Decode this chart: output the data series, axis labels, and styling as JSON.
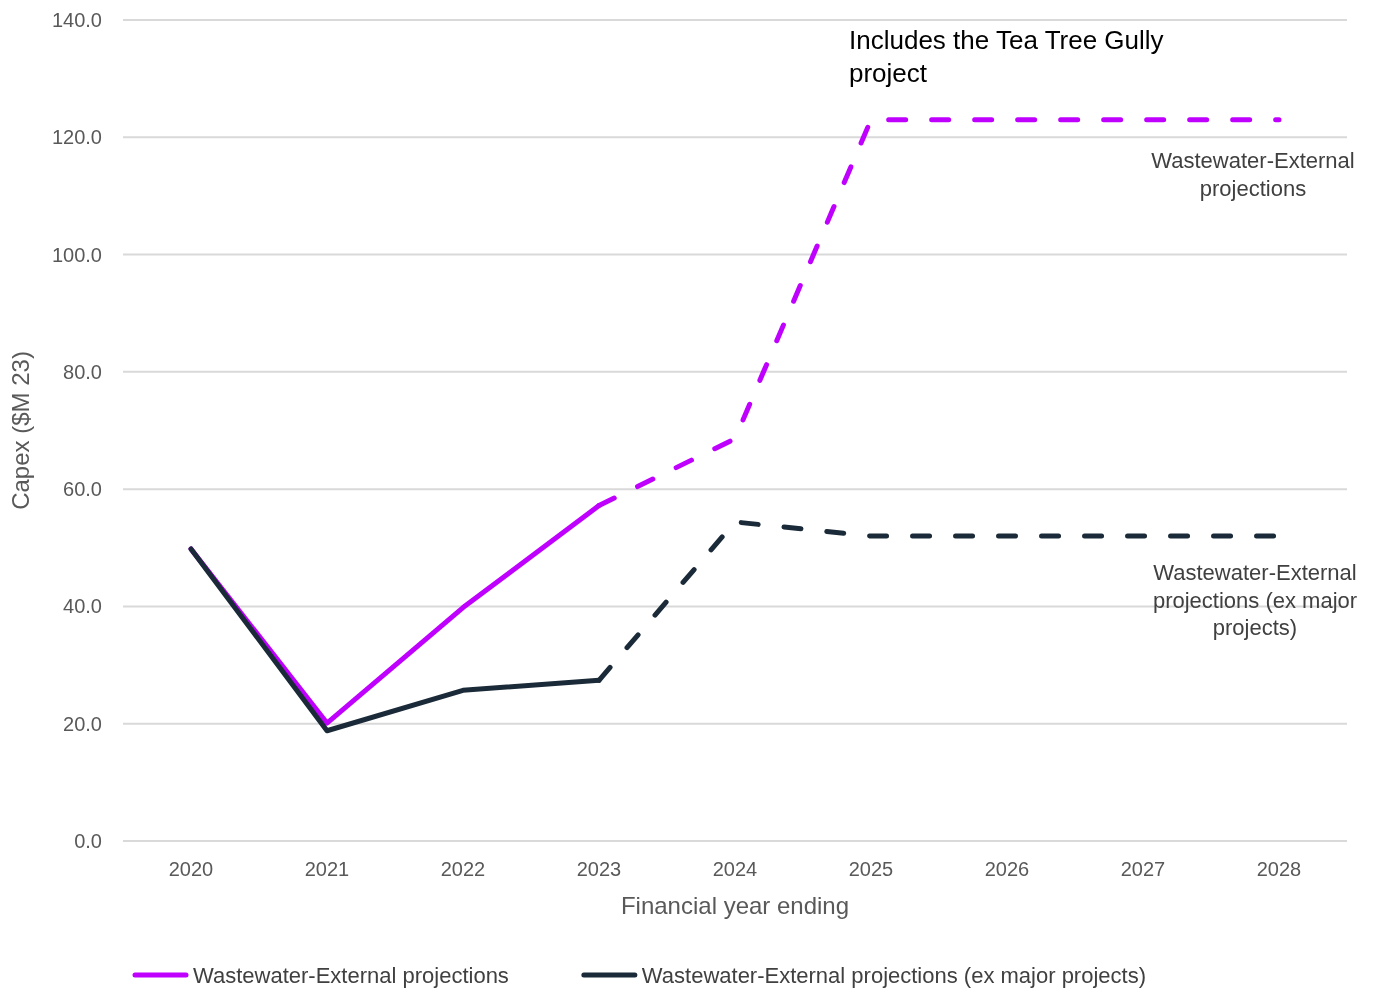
{
  "chart_data": {
    "type": "line",
    "xlabel": "Financial year ending",
    "ylabel": "Capex ($M 23)",
    "categories": [
      "2020",
      "2021",
      "2022",
      "2023",
      "2024",
      "2025",
      "2026",
      "2027",
      "2028"
    ],
    "series": [
      {
        "name": "Wastewater-External projections",
        "color": "#bf00ff",
        "line_style": "solid",
        "values": [
          49.8,
          20.1,
          39.8,
          57.2,
          null,
          null,
          null,
          null,
          null
        ]
      },
      {
        "name": "Wastewater-External projections (ex major projects)",
        "color": "#1b2a38",
        "line_style": "solid",
        "values": [
          49.8,
          18.8,
          25.7,
          27.4,
          null,
          null,
          null,
          null,
          null
        ]
      },
      {
        "color": "#bf00ff",
        "line_style": "dashed",
        "values": [
          null,
          null,
          null,
          57.2,
          68.6,
          123.0,
          123.0,
          123.0,
          123.0
        ]
      },
      {
        "color": "#1b2a38",
        "line_style": "dashed",
        "values": [
          null,
          null,
          null,
          27.4,
          54.4,
          52.0,
          52.0,
          52.0,
          52.0
        ]
      }
    ],
    "ylim": [
      0,
      140
    ],
    "yticks": [
      {
        "value": 0,
        "label": "0.0"
      },
      {
        "value": 20,
        "label": "20.0"
      },
      {
        "value": 40,
        "label": "40.0"
      },
      {
        "value": 60,
        "label": "60.0"
      },
      {
        "value": 80,
        "label": "80.0"
      },
      {
        "value": 100,
        "label": "100.0"
      },
      {
        "value": 120,
        "label": "120.0"
      },
      {
        "value": 140,
        "label": "140.0"
      }
    ],
    "grid": "y",
    "legend": "bottom",
    "annotations": [
      "Includes the Tea Tree Gully project",
      "Wastewater-External projections",
      "Wastewater-External projections (ex major projects)"
    ]
  }
}
